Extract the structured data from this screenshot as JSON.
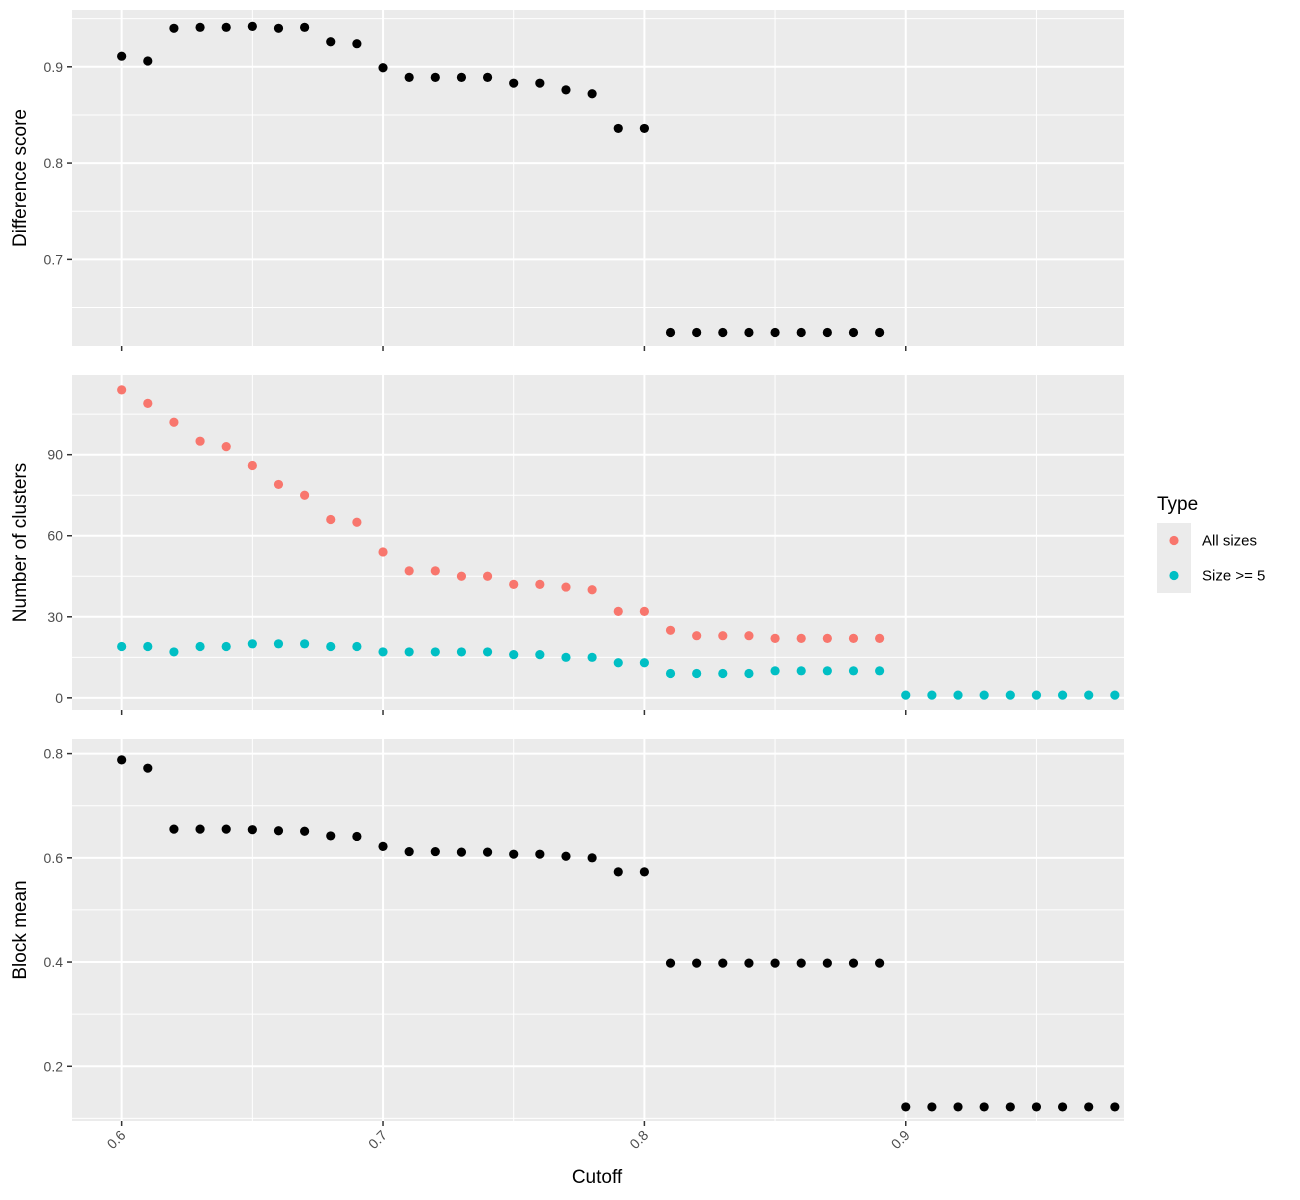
{
  "chart_data": {
    "type": "scatter",
    "xlabel": "Cutoff",
    "x_ticks": [
      0.6,
      0.7,
      0.8,
      0.9
    ],
    "x_tick_labels": [
      "0.6",
      "0.7",
      "0.8",
      "0.9"
    ],
    "xlim": [
      0.581,
      0.9835
    ],
    "grid": true,
    "legend": {
      "title": "Type",
      "position": "right",
      "entries": [
        {
          "label": "All sizes",
          "color": "#F8766D"
        },
        {
          "label": "Size >= 5",
          "color": "#00BFC4"
        }
      ]
    },
    "panels": [
      {
        "ylabel": "Difference score",
        "ylim": [
          0.61,
          0.959
        ],
        "y_ticks": [
          0.7,
          0.8,
          0.9
        ],
        "y_tick_labels": [
          "0.7",
          "0.8",
          "0.9"
        ],
        "series": [
          {
            "color": "#000000",
            "x": [
              0.6,
              0.61,
              0.62,
              0.63,
              0.64,
              0.65,
              0.66,
              0.67,
              0.68,
              0.69,
              0.7,
              0.71,
              0.72,
              0.73,
              0.74,
              0.75,
              0.76,
              0.77,
              0.78,
              0.79,
              0.8,
              0.81,
              0.82,
              0.83,
              0.84,
              0.85,
              0.86,
              0.87,
              0.88,
              0.89
            ],
            "y": [
              0.911,
              0.906,
              0.94,
              0.941,
              0.941,
              0.942,
              0.94,
              0.941,
              0.926,
              0.924,
              0.899,
              0.889,
              0.889,
              0.889,
              0.889,
              0.883,
              0.883,
              0.876,
              0.872,
              0.836,
              0.836,
              0.624,
              0.624,
              0.624,
              0.624,
              0.624,
              0.624,
              0.624,
              0.624,
              0.624
            ]
          }
        ]
      },
      {
        "ylabel": "Number of clusters",
        "ylim": [
          -4.5,
          119.5
        ],
        "y_ticks": [
          0,
          30,
          60,
          90
        ],
        "y_tick_labels": [
          "0",
          "30",
          "60",
          "90"
        ],
        "series": [
          {
            "name": "All sizes",
            "color": "#F8766D",
            "x": [
              0.6,
              0.61,
              0.62,
              0.63,
              0.64,
              0.65,
              0.66,
              0.67,
              0.68,
              0.69,
              0.7,
              0.71,
              0.72,
              0.73,
              0.74,
              0.75,
              0.76,
              0.77,
              0.78,
              0.79,
              0.8,
              0.81,
              0.82,
              0.83,
              0.84,
              0.85,
              0.86,
              0.87,
              0.88,
              0.89
            ],
            "y": [
              114,
              109,
              102,
              95,
              93,
              86,
              79,
              75,
              66,
              65,
              54,
              47,
              47,
              45,
              45,
              42,
              42,
              41,
              40,
              32,
              32,
              25,
              23,
              23,
              23,
              22,
              22,
              22,
              22,
              22
            ]
          },
          {
            "name": "Size >= 5",
            "color": "#00BFC4",
            "x": [
              0.6,
              0.61,
              0.62,
              0.63,
              0.64,
              0.65,
              0.66,
              0.67,
              0.68,
              0.69,
              0.7,
              0.71,
              0.72,
              0.73,
              0.74,
              0.75,
              0.76,
              0.77,
              0.78,
              0.79,
              0.8,
              0.81,
              0.82,
              0.83,
              0.84,
              0.85,
              0.86,
              0.87,
              0.88,
              0.89,
              0.9,
              0.91,
              0.92,
              0.93,
              0.94,
              0.95,
              0.96,
              0.97,
              0.98
            ],
            "y": [
              19,
              19,
              17,
              19,
              19,
              20,
              20,
              20,
              19,
              19,
              17,
              17,
              17,
              17,
              17,
              16,
              16,
              15,
              15,
              13,
              13,
              9,
              9,
              9,
              9,
              10,
              10,
              10,
              10,
              10,
              1,
              1,
              1,
              1,
              1,
              1,
              1,
              1,
              1
            ]
          }
        ]
      },
      {
        "ylabel": "Block mean",
        "ylim": [
          0.095,
          0.828
        ],
        "y_ticks": [
          0.2,
          0.4,
          0.6,
          0.8
        ],
        "y_tick_labels": [
          "0.2",
          "0.4",
          "0.6",
          "0.8"
        ],
        "series": [
          {
            "color": "#000000",
            "x": [
              0.6,
              0.61,
              0.62,
              0.63,
              0.64,
              0.65,
              0.66,
              0.67,
              0.68,
              0.69,
              0.7,
              0.71,
              0.72,
              0.73,
              0.74,
              0.75,
              0.76,
              0.77,
              0.78,
              0.79,
              0.8,
              0.81,
              0.82,
              0.83,
              0.84,
              0.85,
              0.86,
              0.87,
              0.88,
              0.89,
              0.9,
              0.91,
              0.92,
              0.93,
              0.94,
              0.95,
              0.96,
              0.97,
              0.98
            ],
            "y": [
              0.788,
              0.772,
              0.655,
              0.655,
              0.655,
              0.654,
              0.652,
              0.651,
              0.642,
              0.641,
              0.622,
              0.612,
              0.612,
              0.611,
              0.611,
              0.607,
              0.607,
              0.603,
              0.6,
              0.573,
              0.573,
              0.398,
              0.398,
              0.398,
              0.398,
              0.398,
              0.398,
              0.398,
              0.398,
              0.398,
              0.122,
              0.122,
              0.122,
              0.122,
              0.122,
              0.122,
              0.122,
              0.122,
              0.122
            ]
          }
        ]
      }
    ]
  }
}
